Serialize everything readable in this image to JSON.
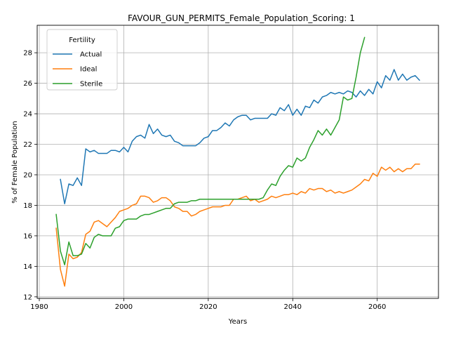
{
  "chart_data": {
    "type": "line",
    "title": "FAVOUR_GUN_PERMITS_Female_Population_Scoring: 1",
    "xlabel": "Years",
    "ylabel": "% of Female Population",
    "xlim": [
      1979.5,
      2074.5
    ],
    "ylim": [
      11.9,
      29.8
    ],
    "x_ticks": [
      1980,
      2000,
      2020,
      2040,
      2060
    ],
    "y_ticks": [
      12,
      14,
      16,
      18,
      20,
      22,
      24,
      26,
      28
    ],
    "grid": true,
    "legend": {
      "title": "Fertility",
      "position": "top-left"
    },
    "series": [
      {
        "name": "Actual",
        "color": "#1f77b4",
        "x": [
          1985,
          1986,
          1987,
          1988,
          1989,
          1990,
          1991,
          1992,
          1993,
          1994,
          1995,
          1996,
          1997,
          1998,
          1999,
          2000,
          2001,
          2002,
          2003,
          2004,
          2005,
          2006,
          2007,
          2008,
          2009,
          2010,
          2011,
          2012,
          2013,
          2014,
          2015,
          2016,
          2017,
          2018,
          2019,
          2020,
          2021,
          2022,
          2023,
          2024,
          2025,
          2026,
          2027,
          2028,
          2029,
          2030,
          2031,
          2032,
          2033,
          2034,
          2035,
          2036,
          2037,
          2038,
          2039,
          2040,
          2041,
          2042,
          2043,
          2044,
          2045,
          2046,
          2047,
          2048,
          2049,
          2050,
          2051,
          2052,
          2053,
          2054,
          2055,
          2056,
          2057,
          2058,
          2059,
          2060,
          2061,
          2062,
          2063,
          2064,
          2065,
          2066,
          2067,
          2068,
          2069,
          2070
        ],
        "y": [
          19.7,
          18.1,
          19.4,
          19.3,
          19.8,
          19.3,
          21.7,
          21.5,
          21.6,
          21.4,
          21.4,
          21.4,
          21.6,
          21.6,
          21.5,
          21.8,
          21.5,
          22.2,
          22.5,
          22.6,
          22.4,
          23.3,
          22.7,
          23.0,
          22.6,
          22.5,
          22.6,
          22.2,
          22.1,
          21.9,
          21.9,
          21.9,
          21.9,
          22.1,
          22.4,
          22.5,
          22.9,
          22.9,
          23.1,
          23.4,
          23.2,
          23.6,
          23.8,
          23.9,
          23.9,
          23.6,
          23.7,
          23.7,
          23.7,
          23.7,
          24.0,
          23.9,
          24.4,
          24.2,
          24.6,
          23.9,
          24.3,
          23.9,
          24.5,
          24.4,
          24.9,
          24.7,
          25.1,
          25.2,
          25.4,
          25.3,
          25.4,
          25.3,
          25.5,
          25.4,
          25.1,
          25.5,
          25.2,
          25.6,
          25.3,
          26.1,
          25.7,
          26.5,
          26.2,
          26.9,
          26.2,
          26.6,
          26.2,
          26.4,
          26.5,
          26.2
        ]
      },
      {
        "name": "Ideal",
        "color": "#ff7f0e",
        "x": [
          1984,
          1985,
          1986,
          1987,
          1988,
          1989,
          1990,
          1991,
          1992,
          1993,
          1994,
          1995,
          1996,
          1997,
          1998,
          1999,
          2000,
          2001,
          2002,
          2003,
          2004,
          2005,
          2006,
          2007,
          2008,
          2009,
          2010,
          2011,
          2012,
          2013,
          2014,
          2015,
          2016,
          2017,
          2018,
          2019,
          2020,
          2021,
          2022,
          2023,
          2024,
          2025,
          2026,
          2027,
          2028,
          2029,
          2030,
          2031,
          2032,
          2033,
          2034,
          2035,
          2036,
          2037,
          2038,
          2039,
          2040,
          2041,
          2042,
          2043,
          2044,
          2045,
          2046,
          2047,
          2048,
          2049,
          2050,
          2051,
          2052,
          2053,
          2054,
          2055,
          2056,
          2057,
          2058,
          2059,
          2060,
          2061,
          2062,
          2063,
          2064,
          2065,
          2066,
          2067,
          2068,
          2069,
          2070
        ],
        "y": [
          16.5,
          13.8,
          12.7,
          14.8,
          14.5,
          14.6,
          14.9,
          16.1,
          16.3,
          16.9,
          17.0,
          16.8,
          16.6,
          16.9,
          17.2,
          17.6,
          17.7,
          17.8,
          18.0,
          18.1,
          18.6,
          18.6,
          18.5,
          18.2,
          18.3,
          18.5,
          18.5,
          18.3,
          17.9,
          17.8,
          17.6,
          17.6,
          17.3,
          17.4,
          17.6,
          17.7,
          17.8,
          17.9,
          17.9,
          17.9,
          18.0,
          18.0,
          18.4,
          18.4,
          18.5,
          18.6,
          18.3,
          18.4,
          18.2,
          18.3,
          18.4,
          18.6,
          18.5,
          18.6,
          18.7,
          18.7,
          18.8,
          18.7,
          18.9,
          18.8,
          19.1,
          19.0,
          19.1,
          19.1,
          18.9,
          19.0,
          18.8,
          18.9,
          18.8,
          18.9,
          19.0,
          19.2,
          19.4,
          19.7,
          19.6,
          20.1,
          19.9,
          20.5,
          20.3,
          20.5,
          20.2,
          20.4,
          20.2,
          20.4,
          20.4,
          20.7,
          20.7
        ]
      },
      {
        "name": "Sterile",
        "color": "#2ca02c",
        "x": [
          1984,
          1985,
          1986,
          1987,
          1988,
          1989,
          1990,
          1991,
          1992,
          1993,
          1994,
          1995,
          1996,
          1997,
          1998,
          1999,
          2000,
          2001,
          2002,
          2003,
          2004,
          2005,
          2006,
          2007,
          2008,
          2009,
          2010,
          2011,
          2012,
          2013,
          2014,
          2015,
          2016,
          2017,
          2018,
          2019,
          2020,
          2021,
          2022,
          2023,
          2024,
          2025,
          2026,
          2027,
          2028,
          2029,
          2030,
          2031,
          2032,
          2033,
          2034,
          2035,
          2036,
          2037,
          2038,
          2039,
          2040,
          2041,
          2042,
          2043,
          2044,
          2045,
          2046,
          2047,
          2048,
          2049,
          2050,
          2051,
          2052,
          2053,
          2054,
          2055,
          2056,
          2057
        ],
        "y": [
          17.4,
          15.0,
          14.1,
          15.6,
          14.7,
          14.7,
          14.8,
          15.5,
          15.2,
          15.9,
          16.1,
          16.0,
          16.0,
          16.0,
          16.5,
          16.6,
          17.0,
          17.1,
          17.1,
          17.1,
          17.3,
          17.4,
          17.4,
          17.5,
          17.6,
          17.7,
          17.8,
          17.8,
          18.1,
          18.2,
          18.2,
          18.2,
          18.3,
          18.3,
          18.4,
          18.4,
          18.4,
          18.4,
          18.4,
          18.4,
          18.4,
          18.4,
          18.4,
          18.4,
          18.4,
          18.4,
          18.4,
          18.4,
          18.4,
          18.5,
          19.0,
          19.4,
          19.3,
          19.9,
          20.3,
          20.6,
          20.5,
          21.1,
          20.9,
          21.1,
          21.8,
          22.3,
          22.9,
          22.6,
          23.0,
          22.6,
          23.1,
          23.6,
          25.1,
          24.9,
          25.0,
          26.4,
          28.0,
          29.0
        ]
      }
    ]
  }
}
